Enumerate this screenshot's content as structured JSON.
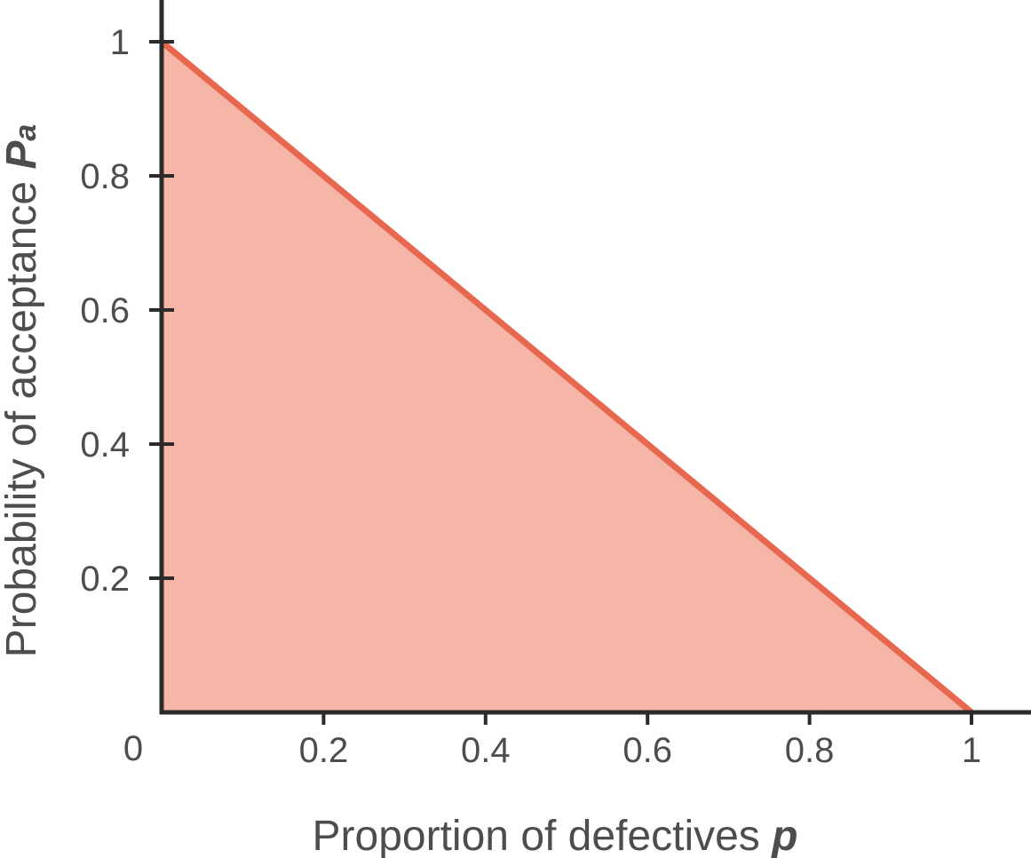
{
  "chart_data": {
    "type": "area",
    "title": "",
    "xlabel": "Proportion of defectives",
    "xlabel_symbol": "p",
    "ylabel": "Probability of acceptance",
    "ylabel_symbol": "P",
    "ylabel_symbol_sub": "a",
    "xlim": [
      0,
      1
    ],
    "ylim": [
      0,
      1
    ],
    "origin_label": "0",
    "x_ticks": [
      {
        "value": 0.2,
        "label": "0.2"
      },
      {
        "value": 0.4,
        "label": "0.4"
      },
      {
        "value": 0.6,
        "label": "0.6"
      },
      {
        "value": 0.8,
        "label": "0.8"
      },
      {
        "value": 1,
        "label": "1"
      }
    ],
    "y_ticks": [
      {
        "value": 0.2,
        "label": "0.2"
      },
      {
        "value": 0.4,
        "label": "0.4"
      },
      {
        "value": 0.6,
        "label": "0.6"
      },
      {
        "value": 0.8,
        "label": "0.8"
      },
      {
        "value": 1,
        "label": "1"
      }
    ],
    "series": [
      {
        "x": [
          0,
          1
        ],
        "y": [
          1,
          0
        ]
      }
    ],
    "grid": false,
    "line_color": "#e8684f",
    "fill_color": "#f5b5a7",
    "axis_color": "#2b2b2b"
  }
}
